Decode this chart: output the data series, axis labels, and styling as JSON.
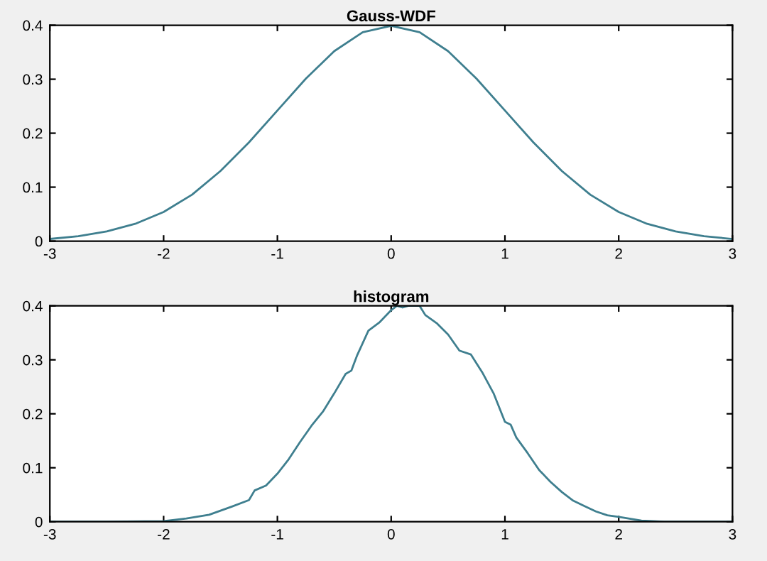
{
  "chart_data": [
    {
      "type": "line",
      "title": "Gauss-WDF",
      "color": "#3f7f8f",
      "x": [
        -3,
        -2.75,
        -2.5,
        -2.25,
        -2,
        -1.75,
        -1.5,
        -1.25,
        -1,
        -0.75,
        -0.5,
        -0.25,
        0,
        0.25,
        0.5,
        0.75,
        1,
        1.25,
        1.5,
        1.75,
        2,
        2.25,
        2.5,
        2.75,
        3
      ],
      "values": [
        0.004,
        0.009,
        0.018,
        0.032,
        0.054,
        0.086,
        0.13,
        0.183,
        0.242,
        0.301,
        0.352,
        0.387,
        0.399,
        0.387,
        0.352,
        0.301,
        0.242,
        0.183,
        0.13,
        0.086,
        0.054,
        0.032,
        0.018,
        0.009,
        0.004
      ],
      "xlim": [
        -3,
        3
      ],
      "ylim": [
        0,
        0.4
      ],
      "xticks": [
        -3,
        -2,
        -1,
        0,
        1,
        2,
        3
      ],
      "yticks": [
        0,
        0.1,
        0.2,
        0.3,
        0.4
      ]
    },
    {
      "type": "line",
      "title": "histogram",
      "color": "#3f7f8f",
      "x": [
        -3,
        -2.5,
        -2,
        -1.8,
        -1.6,
        -1.4,
        -1.25,
        -1.2,
        -1.1,
        -1,
        -0.9,
        -0.8,
        -0.7,
        -0.6,
        -0.5,
        -0.4,
        -0.35,
        -0.3,
        -0.2,
        -0.1,
        0,
        0.05,
        0.1,
        0.15,
        0.25,
        0.3,
        0.4,
        0.5,
        0.6,
        0.7,
        0.8,
        0.9,
        1,
        1.05,
        1.1,
        1.2,
        1.3,
        1.4,
        1.5,
        1.6,
        1.7,
        1.8,
        1.9,
        2,
        2.2,
        2.4,
        3
      ],
      "values": [
        0,
        0,
        0.001,
        0.006,
        0.013,
        0.028,
        0.04,
        0.058,
        0.067,
        0.089,
        0.116,
        0.148,
        0.178,
        0.204,
        0.238,
        0.274,
        0.28,
        0.308,
        0.354,
        0.37,
        0.392,
        0.4,
        0.397,
        0.4,
        0.4,
        0.383,
        0.368,
        0.347,
        0.317,
        0.31,
        0.277,
        0.238,
        0.185,
        0.18,
        0.156,
        0.127,
        0.096,
        0.074,
        0.055,
        0.039,
        0.029,
        0.019,
        0.012,
        0.009,
        0.002,
        0,
        0
      ],
      "xlim": [
        -3,
        3
      ],
      "ylim": [
        0,
        0.4
      ],
      "xticks": [
        -3,
        -2,
        -1,
        0,
        1,
        2,
        3
      ],
      "yticks": [
        0,
        0.1,
        0.2,
        0.3,
        0.4
      ]
    }
  ]
}
